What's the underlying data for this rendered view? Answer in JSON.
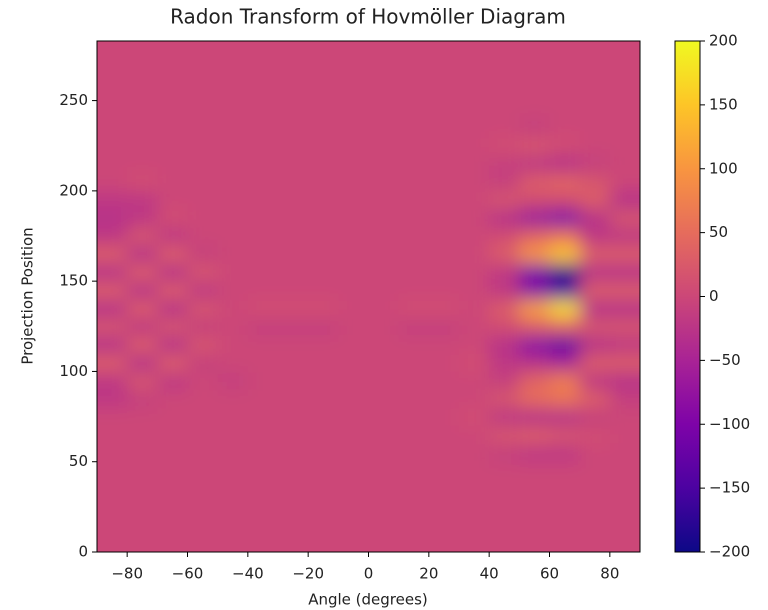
{
  "chart_data": {
    "type": "heatmap",
    "title": "Radon Transform of Hovmöller Diagram",
    "xlabel": "Angle (degrees)",
    "ylabel": "Projection Position",
    "xlim": [
      -90,
      90
    ],
    "ylim": [
      0,
      283
    ],
    "xticks": [
      {
        "value": -80,
        "label": "−80"
      },
      {
        "value": -60,
        "label": "−60"
      },
      {
        "value": -40,
        "label": "−40"
      },
      {
        "value": -20,
        "label": "−20"
      },
      0,
      20,
      40,
      60,
      80
    ],
    "yticks": [
      0,
      50,
      100,
      150,
      200,
      250
    ],
    "clim": [
      -200,
      200
    ],
    "cticks": [
      {
        "value": -200,
        "label": "−200"
      },
      {
        "value": -150,
        "label": "−150"
      },
      {
        "value": -100,
        "label": "−100"
      },
      {
        "value": -50,
        "label": "−50"
      },
      0,
      50,
      100,
      150,
      200
    ],
    "colors": [
      "#0d0887",
      "#4c02a1",
      "#7e03a8",
      "#a92395",
      "#cc4778",
      "#e66c5c",
      "#f89540",
      "#fdc527",
      "#f0f921"
    ],
    "x": [
      -85,
      -75,
      -65,
      -55,
      -45,
      -35,
      -25,
      -15,
      -5,
      5,
      15,
      25,
      35,
      45,
      55,
      65,
      75,
      85
    ],
    "y": [
      5,
      15,
      25,
      35,
      45,
      55,
      65,
      75,
      85,
      95,
      105,
      115,
      125,
      135,
      145,
      155,
      165,
      175,
      185,
      195,
      205,
      215,
      225,
      235,
      245,
      255,
      265,
      275,
      285
    ],
    "z": [
      [
        0,
        0,
        0,
        0,
        0,
        0,
        0,
        0,
        0,
        0,
        0,
        0,
        0,
        0,
        0,
        0,
        0,
        0
      ],
      [
        0,
        0,
        0,
        0,
        0,
        0,
        0,
        0,
        0,
        0,
        0,
        0,
        0,
        0,
        0,
        0,
        0,
        0
      ],
      [
        0,
        0,
        0,
        0,
        0,
        0,
        0,
        0,
        0,
        0,
        0,
        0,
        0,
        0,
        0,
        0,
        0,
        0
      ],
      [
        0,
        0,
        0,
        0,
        0,
        0,
        0,
        0,
        0,
        0,
        0,
        0,
        0,
        0,
        0,
        0,
        0,
        0
      ],
      [
        0,
        0,
        0,
        0,
        0,
        0,
        0,
        0,
        0,
        0,
        0,
        0,
        0,
        0,
        0,
        0,
        0,
        0
      ],
      [
        0,
        0,
        0,
        0,
        0,
        0,
        0,
        0,
        0,
        0,
        0,
        0,
        0,
        -10,
        -20,
        -20,
        0,
        0
      ],
      [
        0,
        0,
        0,
        0,
        0,
        0,
        0,
        0,
        0,
        0,
        0,
        0,
        0,
        20,
        30,
        20,
        10,
        0
      ],
      [
        0,
        0,
        0,
        0,
        0,
        0,
        0,
        0,
        0,
        0,
        0,
        0,
        10,
        -20,
        -30,
        -30,
        -10,
        0
      ],
      [
        -20,
        -10,
        0,
        0,
        0,
        0,
        0,
        0,
        0,
        0,
        0,
        0,
        0,
        20,
        50,
        60,
        30,
        -10
      ],
      [
        -20,
        20,
        -20,
        0,
        -10,
        0,
        0,
        0,
        0,
        0,
        0,
        0,
        0,
        -10,
        40,
        70,
        -20,
        -30
      ],
      [
        30,
        -30,
        30,
        -10,
        0,
        0,
        0,
        0,
        0,
        0,
        0,
        0,
        10,
        -20,
        -30,
        -50,
        30,
        30
      ],
      [
        -30,
        30,
        -30,
        20,
        0,
        0,
        0,
        0,
        0,
        0,
        0,
        0,
        0,
        -30,
        -90,
        -130,
        -30,
        -20
      ],
      [
        20,
        -20,
        20,
        -10,
        0,
        -10,
        -10,
        -10,
        0,
        0,
        -10,
        -10,
        0,
        10,
        30,
        40,
        20,
        20
      ],
      [
        -30,
        30,
        -30,
        20,
        0,
        10,
        10,
        10,
        0,
        0,
        10,
        10,
        0,
        30,
        110,
        170,
        -30,
        -30
      ],
      [
        30,
        -30,
        30,
        -20,
        0,
        0,
        0,
        0,
        0,
        0,
        0,
        0,
        0,
        -20,
        -90,
        -150,
        30,
        30
      ],
      [
        -30,
        30,
        -30,
        20,
        0,
        0,
        0,
        0,
        0,
        0,
        0,
        0,
        0,
        -20,
        -110,
        -190,
        -30,
        -30
      ],
      [
        30,
        -30,
        30,
        -10,
        0,
        0,
        0,
        0,
        0,
        0,
        0,
        0,
        0,
        30,
        100,
        150,
        30,
        30
      ],
      [
        -20,
        20,
        -20,
        0,
        0,
        0,
        0,
        0,
        0,
        0,
        0,
        0,
        0,
        10,
        40,
        60,
        -20,
        -20
      ],
      [
        -30,
        -20,
        10,
        0,
        0,
        0,
        0,
        0,
        0,
        0,
        0,
        0,
        0,
        -30,
        -70,
        -100,
        -30,
        20
      ],
      [
        -20,
        -20,
        0,
        0,
        0,
        0,
        0,
        0,
        0,
        0,
        0,
        0,
        0,
        20,
        10,
        10,
        30,
        -30
      ],
      [
        0,
        10,
        0,
        0,
        0,
        0,
        0,
        0,
        0,
        0,
        0,
        0,
        0,
        -10,
        30,
        40,
        20,
        0
      ],
      [
        0,
        0,
        0,
        0,
        0,
        0,
        0,
        0,
        0,
        0,
        0,
        0,
        0,
        -10,
        -20,
        -30,
        -10,
        0
      ],
      [
        0,
        0,
        0,
        0,
        0,
        0,
        0,
        0,
        0,
        0,
        0,
        0,
        0,
        10,
        20,
        10,
        0,
        0
      ],
      [
        0,
        0,
        0,
        0,
        0,
        0,
        0,
        0,
        0,
        0,
        0,
        0,
        0,
        0,
        -10,
        0,
        0,
        0
      ],
      [
        0,
        0,
        0,
        0,
        0,
        0,
        0,
        0,
        0,
        0,
        0,
        0,
        0,
        0,
        0,
        0,
        0,
        0
      ],
      [
        0,
        0,
        0,
        0,
        0,
        0,
        0,
        0,
        0,
        0,
        0,
        0,
        0,
        0,
        0,
        0,
        0,
        0
      ],
      [
        0,
        0,
        0,
        0,
        0,
        0,
        0,
        0,
        0,
        0,
        0,
        0,
        0,
        0,
        0,
        0,
        0,
        0
      ],
      [
        0,
        0,
        0,
        0,
        0,
        0,
        0,
        0,
        0,
        0,
        0,
        0,
        0,
        0,
        0,
        0,
        0,
        0
      ],
      [
        0,
        0,
        0,
        0,
        0,
        0,
        0,
        0,
        0,
        0,
        0,
        0,
        0,
        0,
        0,
        0,
        0,
        0
      ]
    ]
  }
}
